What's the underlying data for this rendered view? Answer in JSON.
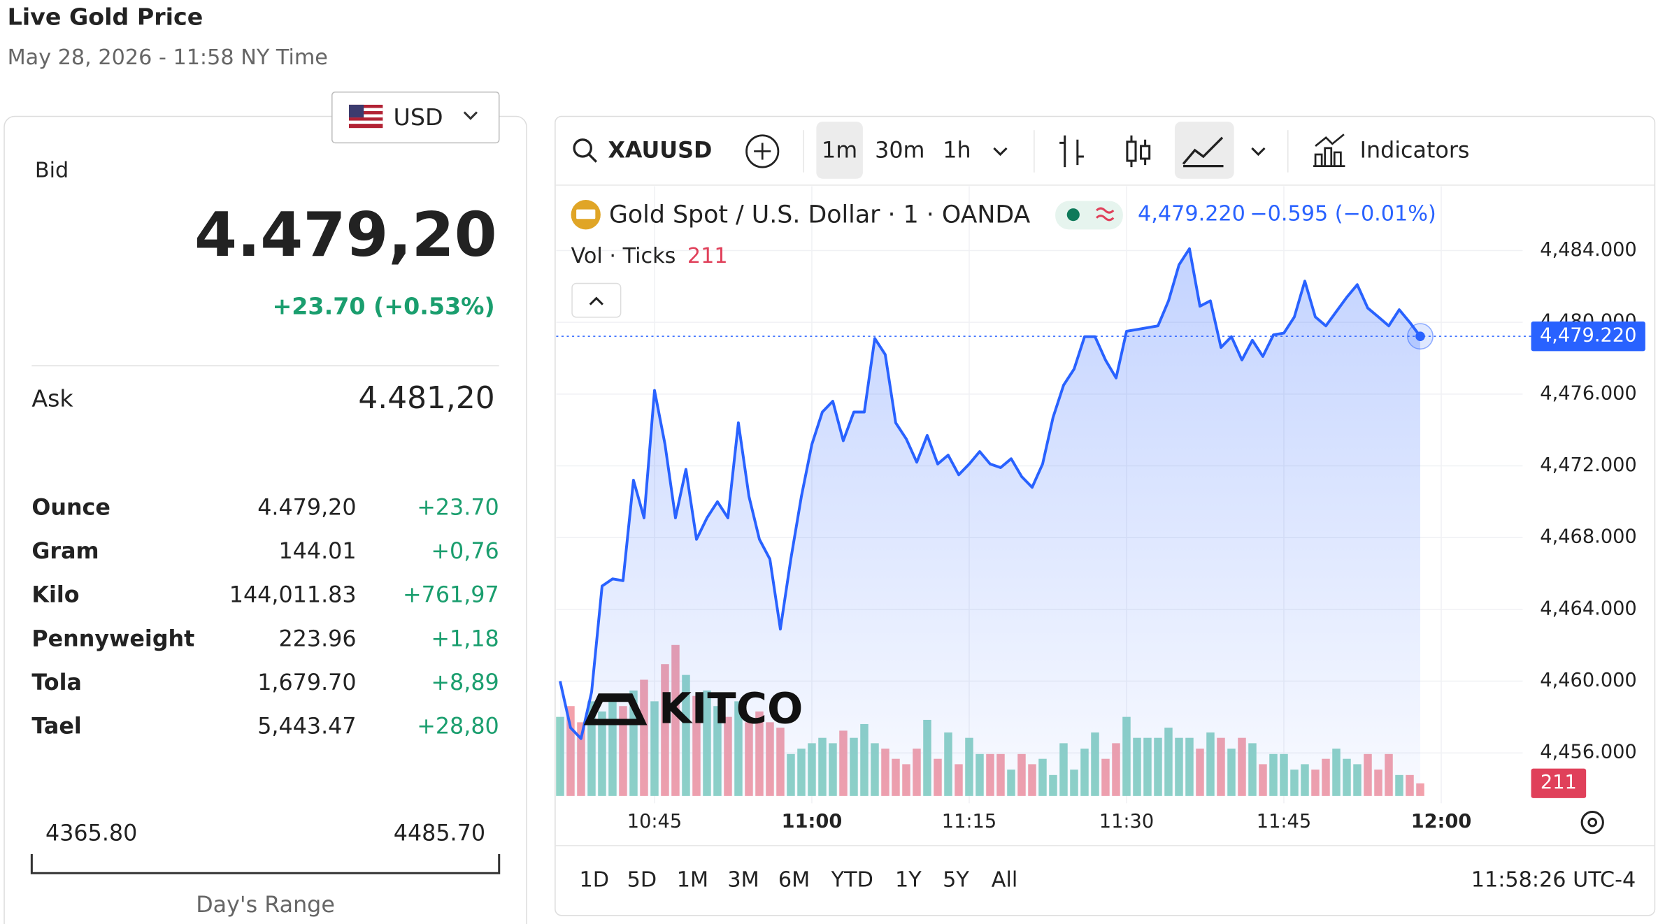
{
  "header": {
    "title": "Live Gold Price",
    "subtitle": "May 28, 2026 - 11:58 NY Time"
  },
  "currency": "USD",
  "bid": {
    "label": "Bid",
    "value": "4.479,20",
    "change": "+23.70 (+0.53%)"
  },
  "ask": {
    "label": "Ask",
    "value": "4.481,20"
  },
  "table": {
    "rows": [
      [
        "Ounce",
        "4.479,20",
        "+23.70"
      ],
      [
        "Gram",
        "144.01",
        "+0,76"
      ],
      [
        "Kilo",
        "144,011.83",
        "+761,97"
      ],
      [
        "Pennyweight",
        "223.96",
        "+1,18"
      ],
      [
        "Tola",
        "1,679.70",
        "+8,89"
      ],
      [
        "Tael",
        "5,443.47",
        "+28,80"
      ]
    ]
  },
  "range": {
    "low": "4365.80",
    "high": "4485.70",
    "label": "Day's Range"
  },
  "widget": {
    "symbol": "XAUUSD",
    "intervals": [
      "1m",
      "30m",
      "1h"
    ],
    "indicators": "Indicators",
    "quote": "4,479.220",
    "quote_change": "−0.595 (−0.01%)",
    "watermark": "KITCO",
    "ranges": [
      "1D",
      "5D",
      "1M",
      "3M",
      "6M",
      "YTD",
      "1Y",
      "5Y",
      "All"
    ],
    "clock": "11:58:26 UTC-4"
  },
  "chart_data": {
    "type": "area",
    "categories": [
      null,
      null,
      null,
      null,
      null,
      null,
      null,
      null,
      null,
      "10:45",
      null,
      null,
      null,
      null,
      null,
      null,
      null,
      null,
      null,
      null,
      null,
      null,
      null,
      null,
      "11:00",
      null,
      null,
      null,
      null,
      null,
      null,
      null,
      null,
      null,
      null,
      null,
      null,
      null,
      null,
      "11:15",
      null,
      null,
      null,
      null,
      null,
      null,
      null,
      null,
      null,
      null,
      null,
      null,
      null,
      null,
      "11:30",
      null,
      null,
      null,
      null,
      null,
      null,
      null,
      null,
      null,
      null,
      null,
      null,
      null,
      null,
      "11:45",
      null,
      null,
      null,
      null,
      null,
      null,
      null,
      null,
      null,
      null,
      null,
      null,
      null,
      null,
      "12:00"
    ],
    "series": [
      {
        "name": "Gold Spot / U.S. Dollar · 1 · OANDA",
        "color": "#2962ff",
        "values": [
          4460.0,
          4457.4,
          4456.8,
          4459.4,
          4465.3,
          4465.7,
          4465.6,
          4471.2,
          4469.1,
          4476.2,
          4473.2,
          4469.1,
          4471.8,
          4467.9,
          4469.1,
          4470.0,
          4469.1,
          4474.4,
          4470.3,
          4467.9,
          4466.8,
          4462.9,
          4466.8,
          4470.3,
          4473.2,
          4475.0,
          4475.6,
          4473.4,
          4475.0,
          4475.0,
          4479.1,
          4478.2,
          4474.4,
          4473.5,
          4472.2,
          4473.7,
          4472.1,
          4472.6,
          4471.5,
          4472.1,
          4472.8,
          4472.1,
          4471.9,
          4472.4,
          4471.4,
          4470.8,
          4472.1,
          4474.7,
          4476.5,
          4477.4,
          4479.2,
          4479.2,
          4477.9,
          4476.9,
          4479.5,
          4479.6,
          4479.7,
          4479.8,
          4481.2,
          4483.2,
          4484.1,
          4480.9,
          4481.2,
          4478.6,
          4479.2,
          4477.9,
          4479.0,
          4478.1,
          4479.3,
          4479.4,
          4480.3,
          4482.3,
          4480.3,
          4479.8,
          4480.6,
          4481.4,
          4482.1,
          4480.8,
          4480.3,
          4479.8,
          4480.7,
          4480.0,
          4479.22,
          null,
          null
        ]
      },
      {
        "name": "Vol · Ticks",
        "axis": "y2",
        "up_color": "#8fd3c6",
        "down_color": "#f3a1ab",
        "values": [
          1320,
          1500,
          1230,
          1580,
          1410,
          1670,
          1500,
          1760,
          1940,
          1580,
          2200,
          2520,
          2020,
          1670,
          1760,
          1500,
          1320,
          1580,
          1230,
          1410,
          1230,
          1140,
          700,
          790,
          880,
          970,
          880,
          1090,
          970,
          1200,
          880,
          790,
          620,
          530,
          790,
          1270,
          620,
          1060,
          530,
          970,
          700,
          700,
          700,
          440,
          700,
          530,
          620,
          350,
          880,
          440,
          790,
          1060,
          620,
          880,
          1320,
          970,
          970,
          970,
          1140,
          970,
          970,
          790,
          1060,
          970,
          790,
          970,
          880,
          530,
          700,
          700,
          440,
          530,
          440,
          620,
          790,
          620,
          530,
          700,
          440,
          700,
          350,
          350,
          211,
          null,
          null
        ],
        "last_label": "211"
      }
    ],
    "last_label": "4,479.220",
    "ylim": [
      4453.6,
      4487
    ],
    "yticks": [
      {
        "value": 4456,
        "label": "4,456.000"
      },
      {
        "value": 4460,
        "label": "4,460.000"
      },
      {
        "value": 4464,
        "label": "4,464.000"
      },
      {
        "value": 4468,
        "label": "4,468.000"
      },
      {
        "value": 4472,
        "label": "4,472.000"
      },
      {
        "value": 4476,
        "label": "4,476.000"
      },
      {
        "value": 4480,
        "label": "4,480.000"
      },
      {
        "value": 4484,
        "label": "4,484.000"
      }
    ],
    "y2lim": [
      0,
      10000
    ],
    "grid": true
  }
}
